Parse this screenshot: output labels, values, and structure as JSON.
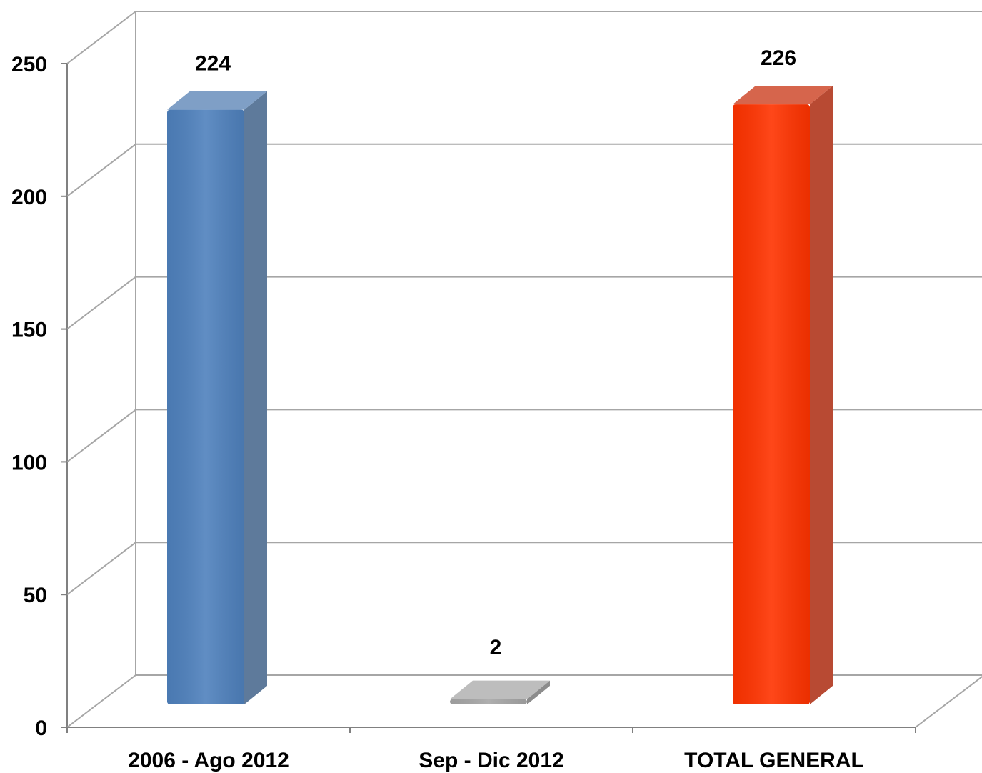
{
  "chart_data": {
    "type": "bar",
    "categories": [
      "2006 - Ago 2012",
      "Sep - Dic 2012",
      "TOTAL GENERAL"
    ],
    "values": [
      224,
      2,
      226
    ],
    "data_labels": [
      "224",
      "2",
      "226"
    ],
    "yticks": [
      "0",
      "50",
      "100",
      "150",
      "200",
      "250"
    ],
    "ylim": [
      0,
      250
    ],
    "grid": true,
    "legend": "none",
    "style": "3d",
    "colors": {
      "bars": [
        "#4F81BD",
        "#A6A6A6",
        "#FF3300"
      ],
      "bar_sides": [
        "#5E7A9B",
        "#8C8C8C",
        "#B84A33"
      ],
      "bar_tops": [
        "#7F9FC6",
        "#BDBDBD",
        "#D6654C"
      ],
      "grid": "#A6A6A6",
      "axis": "#808080"
    }
  }
}
